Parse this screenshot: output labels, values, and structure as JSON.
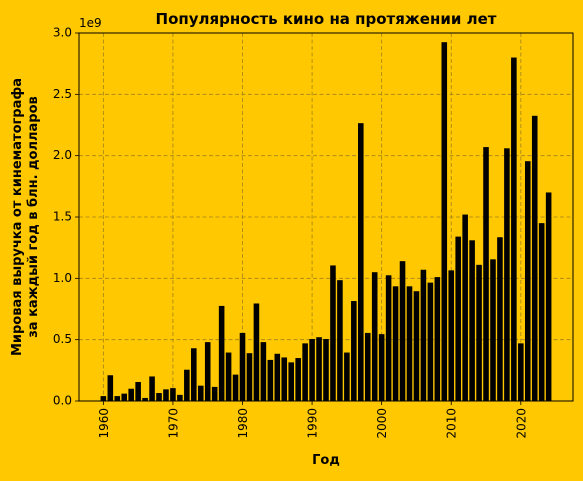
{
  "colors": {
    "background": "#FFC800",
    "bar": "#000000",
    "grid": "#A0821E",
    "axis": "#000000"
  },
  "chart_data": {
    "type": "bar",
    "title": "Популярность кино на протяжении лет",
    "xlabel": "Год",
    "ylabel_line1": "Мировая выручка от кинематографа",
    "ylabel_line2": "за каждый год в блн. долларов",
    "y_offset_text": "1e9",
    "xlim": [
      1956.5,
      2027.5
    ],
    "ylim": [
      0,
      3000000000
    ],
    "grid": true,
    "grid_style": "dashed",
    "x_ticks": [
      1960,
      1970,
      1980,
      1990,
      2000,
      2010,
      2020
    ],
    "x_tick_labels": [
      "1960",
      "1970",
      "1980",
      "1990",
      "2000",
      "2010",
      "2020"
    ],
    "y_ticks": [
      0,
      500000000,
      1000000000,
      1500000000,
      2000000000,
      2500000000,
      3000000000
    ],
    "y_tick_labels": [
      "0.0",
      "0.5",
      "1.0",
      "1.5",
      "2.0",
      "2.5",
      "3.0"
    ],
    "x": [
      1960,
      1961,
      1962,
      1963,
      1964,
      1965,
      1966,
      1967,
      1968,
      1969,
      1970,
      1971,
      1972,
      1973,
      1974,
      1975,
      1976,
      1977,
      1978,
      1979,
      1980,
      1981,
      1982,
      1983,
      1984,
      1985,
      1986,
      1987,
      1988,
      1989,
      1990,
      1991,
      1992,
      1993,
      1994,
      1995,
      1996,
      1997,
      1998,
      1999,
      2000,
      2001,
      2002,
      2003,
      2004,
      2005,
      2006,
      2007,
      2008,
      2009,
      2010,
      2011,
      2012,
      2013,
      2014,
      2015,
      2016,
      2017,
      2018,
      2019,
      2020,
      2021,
      2022,
      2023,
      2024
    ],
    "values": [
      40000000,
      210000000,
      40000000,
      60000000,
      100000000,
      155000000,
      25000000,
      200000000,
      65000000,
      95000000,
      105000000,
      50000000,
      255000000,
      430000000,
      125000000,
      480000000,
      115000000,
      775000000,
      395000000,
      215000000,
      555000000,
      390000000,
      795000000,
      480000000,
      335000000,
      385000000,
      355000000,
      315000000,
      350000000,
      470000000,
      505000000,
      520000000,
      505000000,
      1105000000,
      985000000,
      395000000,
      815000000,
      2265000000,
      555000000,
      1050000000,
      545000000,
      1025000000,
      935000000,
      1140000000,
      935000000,
      895000000,
      1070000000,
      965000000,
      1010000000,
      2925000000,
      1065000000,
      1340000000,
      1520000000,
      1310000000,
      1110000000,
      2070000000,
      1155000000,
      1335000000,
      2060000000,
      2800000000,
      470000000,
      1955000000,
      2325000000,
      1450000000,
      1700000000
    ]
  }
}
